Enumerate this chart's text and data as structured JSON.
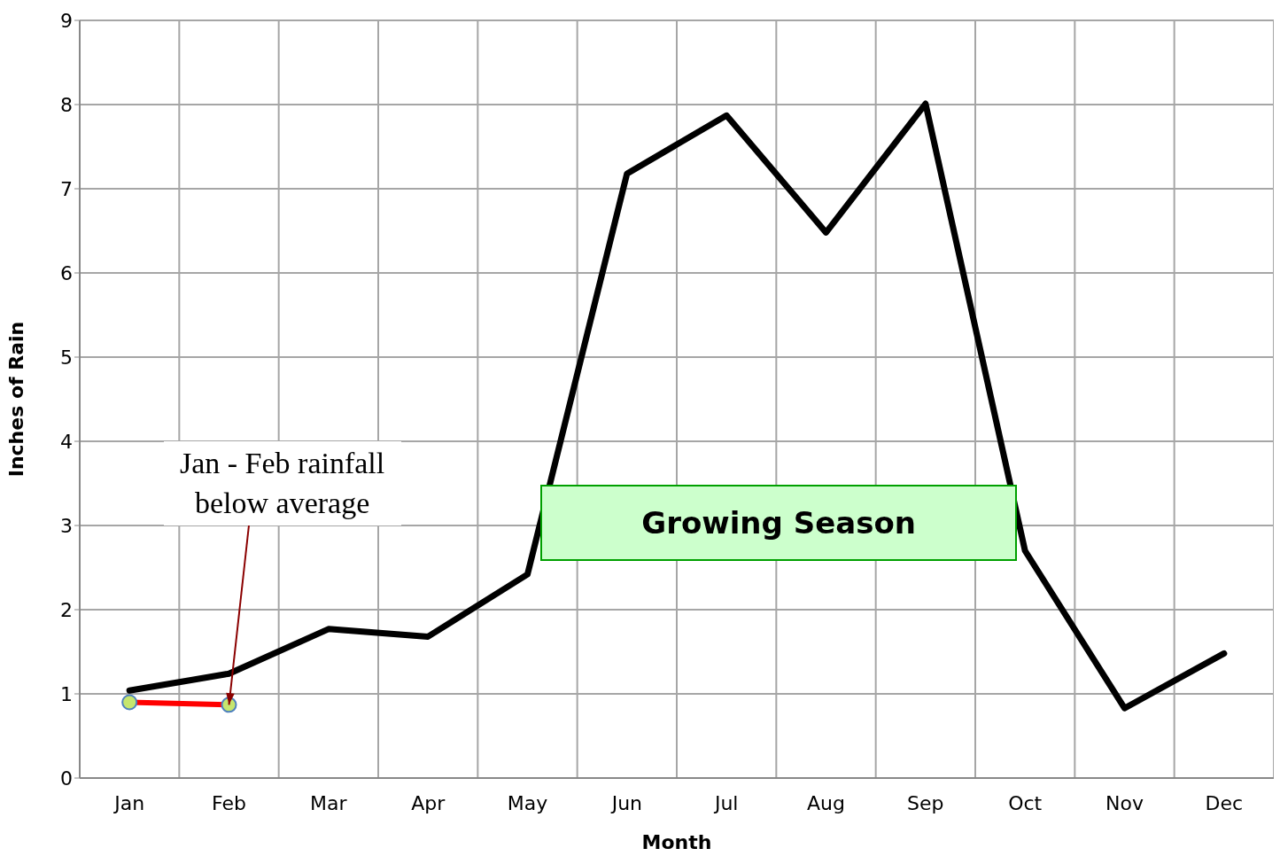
{
  "chart_data": {
    "type": "line",
    "xlabel": "Month",
    "ylabel": "Inches of Rain",
    "categories": [
      "Jan",
      "Feb",
      "Mar",
      "Apr",
      "May",
      "Jun",
      "Jul",
      "Aug",
      "Sep",
      "Oct",
      "Nov",
      "Dec"
    ],
    "series": [
      {
        "color": "#000000",
        "marker": "none",
        "values": [
          1.04,
          1.24,
          1.77,
          1.68,
          2.42,
          7.18,
          7.87,
          6.48,
          8.01,
          2.7,
          0.83,
          1.48
        ]
      },
      {
        "color": "#ff0000",
        "marker": "circle",
        "values": [
          0.9,
          0.87,
          null,
          null,
          null,
          null,
          null,
          null,
          null,
          null,
          null,
          null
        ]
      }
    ],
    "ylim": [
      0,
      9
    ],
    "yticks": [
      0,
      1,
      2,
      3,
      4,
      5,
      6,
      7,
      8,
      9
    ],
    "grid": true,
    "annotations": [
      {
        "text": "Jan - Feb rainfall below average",
        "x": "Feb",
        "y": 0.87
      },
      "Growing Season"
    ]
  }
}
